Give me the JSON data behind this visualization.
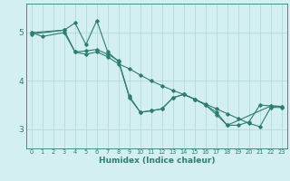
{
  "xlabel": "Humidex (Indice chaleur)",
  "bg_color": "#d4efef",
  "line_color": "#2e7d72",
  "grid_color": "#aed4d4",
  "axis_color": "#2e7d72",
  "tick_color": "#2e7d72",
  "xlim": [
    -0.5,
    23.5
  ],
  "ylim": [
    2.6,
    5.6
  ],
  "xticks": [
    0,
    1,
    2,
    3,
    4,
    5,
    6,
    7,
    8,
    9,
    10,
    11,
    12,
    13,
    14,
    15,
    16,
    17,
    18,
    19,
    20,
    21,
    22,
    23
  ],
  "yticks": [
    3,
    4,
    5
  ],
  "line1_x": [
    0,
    1,
    3,
    4,
    5,
    6,
    7,
    8,
    9,
    10,
    11,
    12,
    13,
    14,
    15,
    16,
    17,
    18,
    19,
    20,
    21,
    22,
    23
  ],
  "line1_y": [
    5.0,
    4.92,
    5.0,
    4.6,
    4.55,
    4.6,
    4.5,
    4.35,
    4.25,
    4.12,
    4.0,
    3.9,
    3.8,
    3.72,
    3.62,
    3.52,
    3.42,
    3.32,
    3.22,
    3.12,
    3.05,
    3.45,
    3.45
  ],
  "line2_x": [
    0,
    3,
    4,
    5,
    6,
    7,
    8,
    9,
    10,
    11,
    12,
    13,
    14,
    15,
    16,
    17,
    18,
    22,
    23
  ],
  "line2_y": [
    5.0,
    5.05,
    5.2,
    4.75,
    5.25,
    4.6,
    4.4,
    3.65,
    3.35,
    3.38,
    3.42,
    3.65,
    3.72,
    3.62,
    3.5,
    3.35,
    3.08,
    3.48,
    3.47
  ],
  "line3_x": [
    0,
    3,
    4,
    5,
    6,
    7,
    8,
    9,
    10,
    11,
    12,
    13,
    14,
    15,
    16,
    17,
    18,
    19,
    20,
    21,
    22,
    23
  ],
  "line3_y": [
    4.97,
    5.05,
    4.6,
    4.62,
    4.65,
    4.55,
    4.42,
    3.68,
    3.35,
    3.38,
    3.42,
    3.65,
    3.72,
    3.62,
    3.5,
    3.3,
    3.08,
    3.08,
    3.15,
    3.5,
    3.48,
    3.47
  ]
}
